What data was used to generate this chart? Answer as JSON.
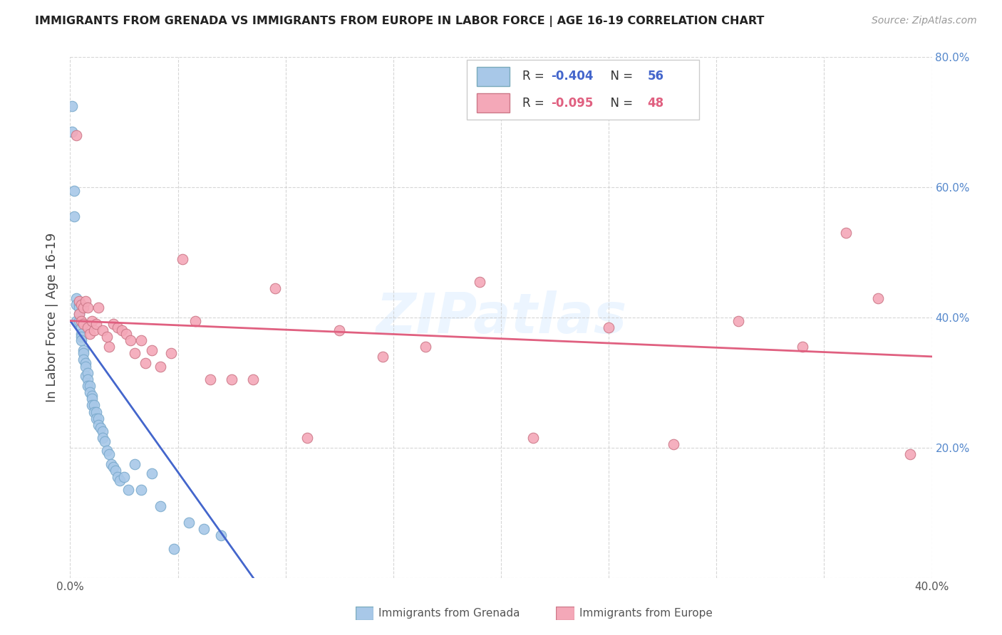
{
  "title": "IMMIGRANTS FROM GRENADA VS IMMIGRANTS FROM EUROPE IN LABOR FORCE | AGE 16-19 CORRELATION CHART",
  "source": "Source: ZipAtlas.com",
  "ylabel": "In Labor Force | Age 16-19",
  "xlim": [
    0.0,
    0.4
  ],
  "ylim": [
    0.0,
    0.8
  ],
  "xticks": [
    0.0,
    0.05,
    0.1,
    0.15,
    0.2,
    0.25,
    0.3,
    0.35,
    0.4
  ],
  "yticks": [
    0.0,
    0.2,
    0.4,
    0.6,
    0.8
  ],
  "color_grenada": "#a8c8e8",
  "color_europe": "#f4a8b8",
  "line_color_grenada": "#4466cc",
  "line_color_europe": "#e06080",
  "background_color": "#ffffff",
  "grid_color": "#cccccc",
  "watermark": "ZIPatlas",
  "R1": "-0.404",
  "N1": "56",
  "R2": "-0.095",
  "N2": "48",
  "grenada_x": [
    0.001,
    0.001,
    0.002,
    0.002,
    0.003,
    0.003,
    0.003,
    0.004,
    0.004,
    0.004,
    0.004,
    0.005,
    0.005,
    0.005,
    0.005,
    0.006,
    0.006,
    0.006,
    0.007,
    0.007,
    0.007,
    0.008,
    0.008,
    0.008,
    0.009,
    0.009,
    0.01,
    0.01,
    0.01,
    0.011,
    0.011,
    0.012,
    0.012,
    0.013,
    0.013,
    0.014,
    0.015,
    0.015,
    0.016,
    0.017,
    0.018,
    0.019,
    0.02,
    0.021,
    0.022,
    0.023,
    0.025,
    0.027,
    0.03,
    0.033,
    0.038,
    0.042,
    0.048,
    0.055,
    0.062,
    0.07
  ],
  "grenada_y": [
    0.725,
    0.685,
    0.595,
    0.555,
    0.43,
    0.42,
    0.395,
    0.42,
    0.415,
    0.405,
    0.395,
    0.385,
    0.375,
    0.37,
    0.365,
    0.35,
    0.345,
    0.335,
    0.33,
    0.325,
    0.31,
    0.315,
    0.305,
    0.295,
    0.295,
    0.285,
    0.28,
    0.275,
    0.265,
    0.265,
    0.255,
    0.255,
    0.245,
    0.245,
    0.235,
    0.23,
    0.225,
    0.215,
    0.21,
    0.195,
    0.19,
    0.175,
    0.17,
    0.165,
    0.155,
    0.15,
    0.155,
    0.135,
    0.175,
    0.135,
    0.16,
    0.11,
    0.045,
    0.085,
    0.075,
    0.065
  ],
  "europe_x": [
    0.003,
    0.004,
    0.004,
    0.005,
    0.005,
    0.006,
    0.006,
    0.007,
    0.008,
    0.008,
    0.009,
    0.01,
    0.011,
    0.012,
    0.013,
    0.015,
    0.017,
    0.018,
    0.02,
    0.022,
    0.024,
    0.026,
    0.028,
    0.03,
    0.033,
    0.035,
    0.038,
    0.042,
    0.047,
    0.052,
    0.058,
    0.065,
    0.075,
    0.085,
    0.095,
    0.11,
    0.125,
    0.145,
    0.165,
    0.19,
    0.215,
    0.25,
    0.28,
    0.31,
    0.34,
    0.36,
    0.375,
    0.39
  ],
  "europe_y": [
    0.68,
    0.425,
    0.405,
    0.42,
    0.395,
    0.415,
    0.39,
    0.425,
    0.415,
    0.385,
    0.375,
    0.395,
    0.38,
    0.39,
    0.415,
    0.38,
    0.37,
    0.355,
    0.39,
    0.385,
    0.38,
    0.375,
    0.365,
    0.345,
    0.365,
    0.33,
    0.35,
    0.325,
    0.345,
    0.49,
    0.395,
    0.305,
    0.305,
    0.305,
    0.445,
    0.215,
    0.38,
    0.34,
    0.355,
    0.455,
    0.215,
    0.385,
    0.205,
    0.395,
    0.355,
    0.53,
    0.43,
    0.19
  ],
  "grenada_line_x": [
    0.0,
    0.085
  ],
  "grenada_line_y": [
    0.395,
    0.0
  ],
  "europe_line_x": [
    0.0,
    0.4
  ],
  "europe_line_y": [
    0.395,
    0.34
  ]
}
